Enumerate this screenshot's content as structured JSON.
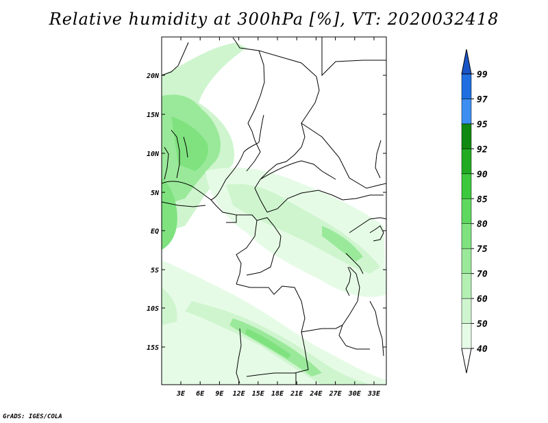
{
  "title": "Relative humidity at 300hPa [%], VT: 2020032418",
  "credit": "GrADS: IGES/COLA",
  "map": {
    "variable": "Relative humidity",
    "level": "300hPa",
    "valid_time": "2020032418",
    "lat_labels": [
      "20N",
      "15N",
      "10N",
      "5N",
      "EQ",
      "5S",
      "10S",
      "15S"
    ],
    "lon_labels": [
      "3E",
      "6E",
      "9E",
      "12E",
      "15E",
      "18E",
      "21E",
      "24E",
      "27E",
      "30E",
      "33E"
    ]
  },
  "colorbar": {
    "levels": [
      "40",
      "50",
      "60",
      "70",
      "75",
      "80",
      "85",
      "90",
      "92",
      "95",
      "97",
      "99"
    ],
    "colors": [
      "#ffffff",
      "#e6fbe6",
      "#cff5cf",
      "#b4efb4",
      "#9ae99a",
      "#7fe27f",
      "#5fd85f",
      "#3cc83c",
      "#22aa22",
      "#118811",
      "#3d8ef0",
      "#1f6fe0",
      "#1a55c8"
    ]
  }
}
